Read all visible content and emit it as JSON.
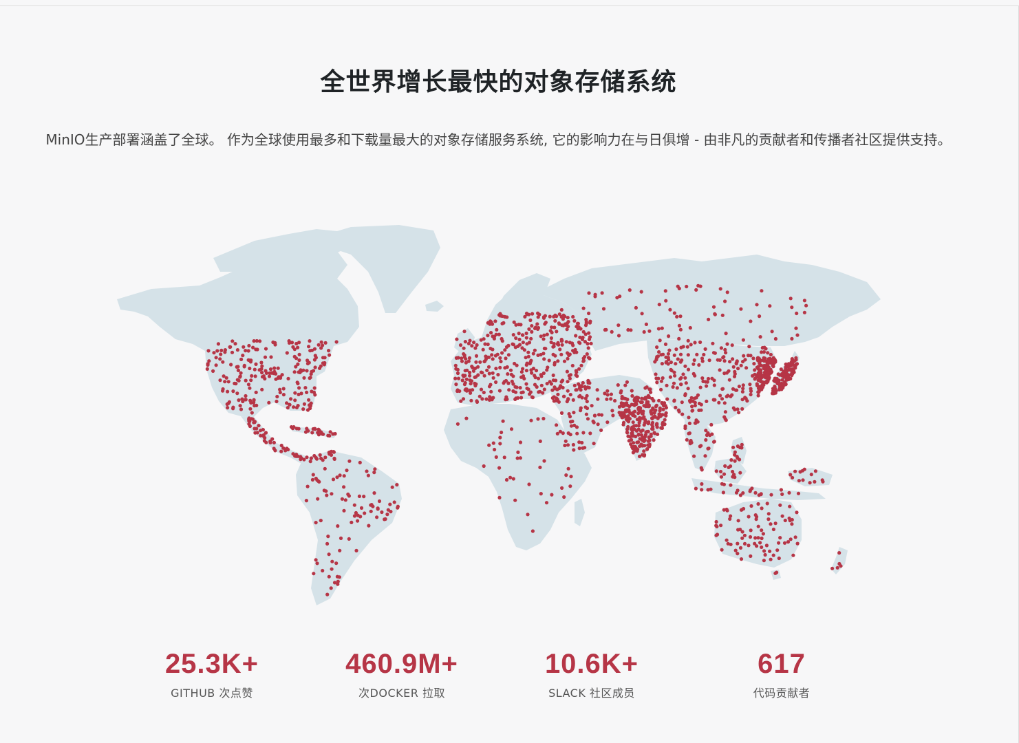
{
  "page": {
    "headline": "全世界增长最快的对象存储系统",
    "intro": "MinIO生产部署涵盖了全球。 作为全球使用最多和下载量最大的对象存储服务系统, 它的影响力在与日俱增 - 由非凡的贡献者和传播者社区提供支持。"
  },
  "map": {
    "land_color": "#d5e2e8",
    "marker_color": "#b63546",
    "regions": [
      {
        "name": "north-america",
        "density": "high"
      },
      {
        "name": "central-america-caribbean",
        "density": "medium"
      },
      {
        "name": "south-america",
        "density": "medium"
      },
      {
        "name": "europe",
        "density": "very-high"
      },
      {
        "name": "africa",
        "density": "low"
      },
      {
        "name": "middle-east",
        "density": "medium"
      },
      {
        "name": "russia",
        "density": "medium"
      },
      {
        "name": "india",
        "density": "high"
      },
      {
        "name": "china",
        "density": "high"
      },
      {
        "name": "japan-korea",
        "density": "high"
      },
      {
        "name": "southeast-asia",
        "density": "medium"
      },
      {
        "name": "oceania",
        "density": "medium"
      }
    ]
  },
  "stats": [
    {
      "value": "25.3K+",
      "label": "GITHUB 次点赞"
    },
    {
      "value": "460.9M+",
      "label": "次DOCKER 拉取"
    },
    {
      "value": "10.6K+",
      "label": "SLACK 社区成员"
    },
    {
      "value": "617",
      "label": "代码贡献者"
    }
  ]
}
